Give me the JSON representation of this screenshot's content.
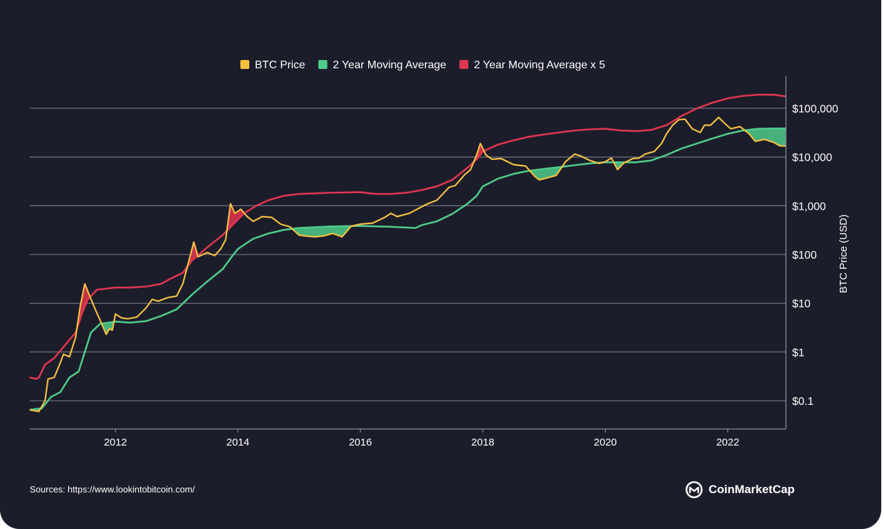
{
  "chart_data": {
    "type": "line",
    "title": "",
    "y_scale": "log",
    "ylabel": "BTC Price (USD)",
    "xlabel": "",
    "ylim": [
      0.03,
      400000
    ],
    "xlim": [
      2010.6,
      2022.95
    ],
    "y_ticks": [
      {
        "value": 0.1,
        "label": "$0.1"
      },
      {
        "value": 1,
        "label": "$1"
      },
      {
        "value": 10,
        "label": "$10"
      },
      {
        "value": 100,
        "label": "$100"
      },
      {
        "value": 1000,
        "label": "$1,000"
      },
      {
        "value": 10000,
        "label": "$10,000"
      },
      {
        "value": 100000,
        "label": "$100,000"
      }
    ],
    "x_ticks": [
      {
        "value": 2012,
        "label": "2012"
      },
      {
        "value": 2014,
        "label": "2014"
      },
      {
        "value": 2016,
        "label": "2016"
      },
      {
        "value": 2018,
        "label": "2018"
      },
      {
        "value": 2020,
        "label": "2020"
      },
      {
        "value": 2022,
        "label": "2022"
      }
    ],
    "legend": [
      {
        "label": "BTC Price",
        "color": "#f3c043"
      },
      {
        "label": "2 Year Moving Average",
        "color": "#4ecb8a"
      },
      {
        "label": "2 Year Moving Average x 5",
        "color": "#e0364f"
      }
    ],
    "series": [
      {
        "name": "BTC Price",
        "color": "#f3c043",
        "points": [
          [
            2010.6,
            0.065
          ],
          [
            2010.75,
            0.06
          ],
          [
            2010.85,
            0.1
          ],
          [
            2010.9,
            0.28
          ],
          [
            2011.0,
            0.3
          ],
          [
            2011.1,
            0.6
          ],
          [
            2011.15,
            0.9
          ],
          [
            2011.25,
            0.8
          ],
          [
            2011.35,
            2.0
          ],
          [
            2011.42,
            8
          ],
          [
            2011.5,
            25
          ],
          [
            2011.58,
            14
          ],
          [
            2011.68,
            7
          ],
          [
            2011.75,
            4.5
          ],
          [
            2011.85,
            2.3
          ],
          [
            2011.9,
            3.0
          ],
          [
            2011.95,
            2.8
          ],
          [
            2012.0,
            6.0
          ],
          [
            2012.1,
            5.0
          ],
          [
            2012.2,
            4.8
          ],
          [
            2012.35,
            5.2
          ],
          [
            2012.5,
            8
          ],
          [
            2012.6,
            12
          ],
          [
            2012.7,
            11
          ],
          [
            2012.85,
            13
          ],
          [
            2013.0,
            14
          ],
          [
            2013.1,
            25
          ],
          [
            2013.18,
            60
          ],
          [
            2013.28,
            180
          ],
          [
            2013.35,
            90
          ],
          [
            2013.5,
            110
          ],
          [
            2013.62,
            95
          ],
          [
            2013.72,
            130
          ],
          [
            2013.8,
            200
          ],
          [
            2013.88,
            1100
          ],
          [
            2013.95,
            700
          ],
          [
            2014.05,
            850
          ],
          [
            2014.15,
            600
          ],
          [
            2014.25,
            480
          ],
          [
            2014.4,
            600
          ],
          [
            2014.55,
            580
          ],
          [
            2014.7,
            420
          ],
          [
            2014.85,
            370
          ],
          [
            2015.0,
            250
          ],
          [
            2015.1,
            240
          ],
          [
            2015.25,
            230
          ],
          [
            2015.4,
            240
          ],
          [
            2015.55,
            270
          ],
          [
            2015.7,
            230
          ],
          [
            2015.85,
            380
          ],
          [
            2016.0,
            420
          ],
          [
            2016.2,
            440
          ],
          [
            2016.4,
            580
          ],
          [
            2016.5,
            700
          ],
          [
            2016.6,
            600
          ],
          [
            2016.8,
            700
          ],
          [
            2017.0,
            950
          ],
          [
            2017.1,
            1100
          ],
          [
            2017.25,
            1300
          ],
          [
            2017.45,
            2400
          ],
          [
            2017.55,
            2600
          ],
          [
            2017.7,
            4300
          ],
          [
            2017.8,
            5500
          ],
          [
            2017.9,
            11000
          ],
          [
            2017.96,
            19000
          ],
          [
            2018.05,
            11000
          ],
          [
            2018.15,
            9000
          ],
          [
            2018.3,
            9300
          ],
          [
            2018.5,
            7000
          ],
          [
            2018.7,
            6500
          ],
          [
            2018.85,
            4000
          ],
          [
            2018.92,
            3400
          ],
          [
            2019.0,
            3600
          ],
          [
            2019.2,
            4200
          ],
          [
            2019.35,
            8000
          ],
          [
            2019.5,
            11500
          ],
          [
            2019.6,
            10500
          ],
          [
            2019.75,
            8500
          ],
          [
            2019.9,
            7400
          ],
          [
            2020.0,
            8000
          ],
          [
            2020.1,
            9500
          ],
          [
            2020.2,
            5500
          ],
          [
            2020.3,
            7500
          ],
          [
            2020.45,
            9300
          ],
          [
            2020.55,
            9500
          ],
          [
            2020.65,
            11500
          ],
          [
            2020.8,
            13000
          ],
          [
            2020.92,
            19000
          ],
          [
            2021.0,
            30000
          ],
          [
            2021.1,
            45000
          ],
          [
            2021.2,
            58000
          ],
          [
            2021.3,
            60000
          ],
          [
            2021.42,
            38000
          ],
          [
            2021.55,
            32000
          ],
          [
            2021.62,
            45000
          ],
          [
            2021.72,
            45000
          ],
          [
            2021.85,
            65000
          ],
          [
            2021.95,
            49000
          ],
          [
            2022.05,
            38000
          ],
          [
            2022.2,
            42000
          ],
          [
            2022.35,
            30000
          ],
          [
            2022.45,
            21000
          ],
          [
            2022.6,
            23000
          ],
          [
            2022.75,
            20000
          ],
          [
            2022.85,
            17000
          ],
          [
            2022.95,
            16800
          ]
        ]
      },
      {
        "name": "2 Year Moving Average",
        "color": "#4ecb8a",
        "points": [
          [
            2010.6,
            0.065
          ],
          [
            2010.8,
            0.07
          ],
          [
            2010.95,
            0.12
          ],
          [
            2011.1,
            0.15
          ],
          [
            2011.25,
            0.3
          ],
          [
            2011.4,
            0.4
          ],
          [
            2011.5,
            1.0
          ],
          [
            2011.6,
            2.5
          ],
          [
            2011.75,
            3.8
          ],
          [
            2012.0,
            4.2
          ],
          [
            2012.25,
            4.0
          ],
          [
            2012.5,
            4.3
          ],
          [
            2012.75,
            5.5
          ],
          [
            2013.0,
            7.5
          ],
          [
            2013.25,
            15
          ],
          [
            2013.5,
            28
          ],
          [
            2013.75,
            50
          ],
          [
            2013.9,
            90
          ],
          [
            2014.0,
            130
          ],
          [
            2014.25,
            210
          ],
          [
            2014.5,
            270
          ],
          [
            2014.75,
            320
          ],
          [
            2015.0,
            350
          ],
          [
            2015.5,
            375
          ],
          [
            2016.0,
            385
          ],
          [
            2016.5,
            370
          ],
          [
            2016.9,
            350
          ],
          [
            2017.0,
            400
          ],
          [
            2017.25,
            480
          ],
          [
            2017.5,
            680
          ],
          [
            2017.75,
            1100
          ],
          [
            2017.9,
            1600
          ],
          [
            2018.0,
            2500
          ],
          [
            2018.25,
            3600
          ],
          [
            2018.5,
            4500
          ],
          [
            2018.75,
            5200
          ],
          [
            2019.0,
            5700
          ],
          [
            2019.25,
            6200
          ],
          [
            2019.5,
            6800
          ],
          [
            2019.75,
            7400
          ],
          [
            2020.0,
            7800
          ],
          [
            2020.25,
            7800
          ],
          [
            2020.5,
            7800
          ],
          [
            2020.75,
            8500
          ],
          [
            2021.0,
            11000
          ],
          [
            2021.25,
            15000
          ],
          [
            2021.5,
            19000
          ],
          [
            2021.75,
            24000
          ],
          [
            2022.0,
            30000
          ],
          [
            2022.25,
            35000
          ],
          [
            2022.5,
            38000
          ],
          [
            2022.75,
            38500
          ],
          [
            2022.95,
            38500
          ]
        ]
      },
      {
        "name": "2 Year Moving Average x 5",
        "color": "#e0364f",
        "points": [
          [
            2010.6,
            0.3
          ],
          [
            2010.7,
            0.28
          ],
          [
            2010.75,
            0.3
          ],
          [
            2010.85,
            0.55
          ],
          [
            2011.0,
            0.75
          ],
          [
            2011.2,
            1.5
          ],
          [
            2011.35,
            2.5
          ],
          [
            2011.45,
            6
          ],
          [
            2011.55,
            12
          ],
          [
            2011.7,
            19
          ],
          [
            2012.0,
            21
          ],
          [
            2012.25,
            21
          ],
          [
            2012.5,
            22
          ],
          [
            2012.75,
            25
          ],
          [
            2012.9,
            32
          ],
          [
            2013.1,
            42
          ],
          [
            2013.25,
            75
          ],
          [
            2013.5,
            140
          ],
          [
            2013.75,
            250
          ],
          [
            2013.95,
            450
          ],
          [
            2014.1,
            700
          ],
          [
            2014.3,
            1000
          ],
          [
            2014.5,
            1300
          ],
          [
            2014.75,
            1600
          ],
          [
            2015.0,
            1750
          ],
          [
            2015.5,
            1850
          ],
          [
            2016.0,
            1900
          ],
          [
            2016.25,
            1750
          ],
          [
            2016.5,
            1750
          ],
          [
            2016.75,
            1850
          ],
          [
            2017.0,
            2100
          ],
          [
            2017.25,
            2500
          ],
          [
            2017.5,
            3400
          ],
          [
            2017.75,
            6000
          ],
          [
            2017.9,
            9000
          ],
          [
            2018.0,
            13000
          ],
          [
            2018.25,
            18000
          ],
          [
            2018.5,
            22000
          ],
          [
            2018.75,
            26000
          ],
          [
            2019.0,
            29000
          ],
          [
            2019.25,
            32000
          ],
          [
            2019.5,
            35000
          ],
          [
            2019.75,
            37000
          ],
          [
            2020.0,
            38000
          ],
          [
            2020.25,
            35000
          ],
          [
            2020.5,
            34000
          ],
          [
            2020.75,
            36000
          ],
          [
            2021.0,
            45000
          ],
          [
            2021.25,
            70000
          ],
          [
            2021.5,
            100000
          ],
          [
            2021.75,
            130000
          ],
          [
            2022.0,
            160000
          ],
          [
            2022.25,
            180000
          ],
          [
            2022.5,
            190000
          ],
          [
            2022.75,
            190000
          ],
          [
            2022.95,
            175000
          ]
        ]
      }
    ]
  },
  "source_text": "Sources: https://www.lookintobitcoin.com/",
  "brand": {
    "name": "CoinMarketCap",
    "icon": "coinmarketcap-logo-icon"
  },
  "colors": {
    "background": "#1c1d2a",
    "grid": "#6b6e7d",
    "price": "#f3c043",
    "ma": "#4ecb8a",
    "ma5": "#e0364f"
  }
}
